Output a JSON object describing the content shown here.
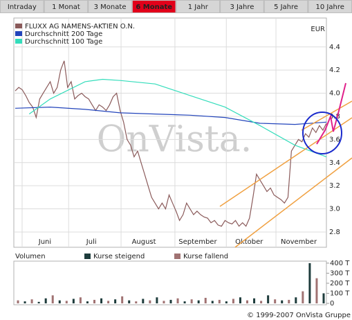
{
  "tabs": [
    "Intraday",
    "1 Monat",
    "3 Monate",
    "6 Monate",
    "1 Jahr",
    "3 Jahre",
    "5 Jahre",
    "10 Jahre"
  ],
  "active_tab": 3,
  "watermark": "OnVista.",
  "copyright": "© 1999-2007 OnVista Gruppe",
  "chart_data": [
    {
      "type": "line",
      "unit_label": "EUR",
      "ylim": [
        2.68,
        4.65
      ],
      "yticks": [
        2.8,
        {
          "value": 3,
          "label": "3.0"
        },
        3.2,
        3.4,
        3.6,
        3.8,
        {
          "value": 4,
          "label": "4.0"
        },
        4.2,
        4.4
      ],
      "xlim": [
        0,
        89
      ],
      "xticks": [
        {
          "value": 8.5,
          "label": "Juni"
        },
        {
          "value": 21.8,
          "label": "Juli"
        },
        {
          "value": 36.8,
          "label": "August"
        },
        {
          "value": 52.2,
          "label": "September"
        },
        {
          "value": 66.9,
          "label": "Oktober"
        },
        {
          "value": 81.1,
          "label": "November"
        }
      ],
      "grid": true,
      "series": [
        {
          "name": "FLUXX AG NAMENS-AKTIEN O.N.",
          "color": "#8a5a5a",
          "values": [
            4.02,
            4.05,
            4.03,
            3.98,
            3.92,
            3.88,
            3.79,
            3.95,
            4.0,
            4.05,
            4.1,
            4.0,
            4.05,
            4.2,
            4.28,
            4.05,
            4.1,
            3.95,
            3.98,
            4.0,
            3.97,
            3.95,
            3.9,
            3.85,
            3.9,
            3.88,
            3.85,
            3.9,
            3.97,
            4.0,
            3.85,
            3.75,
            3.6,
            3.55,
            3.45,
            3.5,
            3.4,
            3.3,
            3.2,
            3.1,
            3.05,
            3.0,
            3.05,
            3.0,
            3.12,
            3.05,
            2.98,
            2.9,
            2.95,
            3.05,
            3.0,
            2.95,
            2.98,
            2.95,
            2.93,
            2.92,
            2.88,
            2.9,
            2.86,
            2.85,
            2.9,
            2.88,
            2.87,
            2.9,
            2.85,
            2.88,
            2.85,
            2.92,
            3.1,
            3.3,
            3.25,
            3.2,
            3.15,
            3.18,
            3.12,
            3.1,
            3.08,
            3.05,
            3.1,
            3.5,
            3.55,
            3.6,
            3.58,
            3.65,
            3.62,
            3.7,
            3.66,
            3.72,
            3.68,
            3.74
          ]
        },
        {
          "name": "Durchschnitt 200 Tage",
          "color": "#2244bb",
          "x": [
            0,
            10,
            20,
            30,
            40,
            50,
            60,
            70,
            80,
            89
          ],
          "values": [
            3.87,
            3.88,
            3.86,
            3.83,
            3.82,
            3.81,
            3.79,
            3.74,
            3.73,
            3.75
          ]
        },
        {
          "name": "Durchschnitt 100 Tage",
          "color": "#33ddbb",
          "x": [
            4,
            10,
            20,
            25,
            30,
            40,
            50,
            60,
            70,
            80,
            89
          ],
          "values": [
            3.82,
            3.95,
            4.1,
            4.12,
            4.11,
            4.08,
            3.98,
            3.88,
            3.72,
            3.55,
            3.45
          ]
        }
      ]
    },
    {
      "type": "bar",
      "title": "Volumen",
      "ylim": [
        0,
        420
      ],
      "yticks": [
        0,
        {
          "value": 100,
          "label": "100 T"
        },
        {
          "value": 200,
          "label": "200 T"
        },
        {
          "value": 300,
          "label": "300 T"
        },
        {
          "value": 400,
          "label": "400 T"
        }
      ],
      "series": [
        {
          "name": "Kurse steigend",
          "color": "#1e3c3c",
          "values": [
            null,
            20,
            null,
            15,
            50,
            null,
            30,
            null,
            45,
            null,
            20,
            null,
            50,
            null,
            40,
            null,
            30,
            null,
            45,
            null,
            60,
            null,
            35,
            null,
            20,
            null,
            30,
            null,
            25,
            null,
            20,
            null,
            60,
            null,
            50,
            null,
            80,
            null,
            30,
            null,
            60,
            null,
            400,
            null,
            100
          ]
        },
        {
          "name": "Kurse fallend",
          "color": "#a07272",
          "values": [
            30,
            null,
            40,
            null,
            null,
            80,
            null,
            25,
            null,
            60,
            null,
            35,
            null,
            25,
            null,
            70,
            null,
            20,
            null,
            30,
            null,
            25,
            null,
            50,
            null,
            40,
            null,
            55,
            null,
            35,
            null,
            45,
            null,
            30,
            null,
            25,
            null,
            40,
            null,
            35,
            null,
            120,
            null,
            250,
            null
          ]
        }
      ]
    }
  ]
}
